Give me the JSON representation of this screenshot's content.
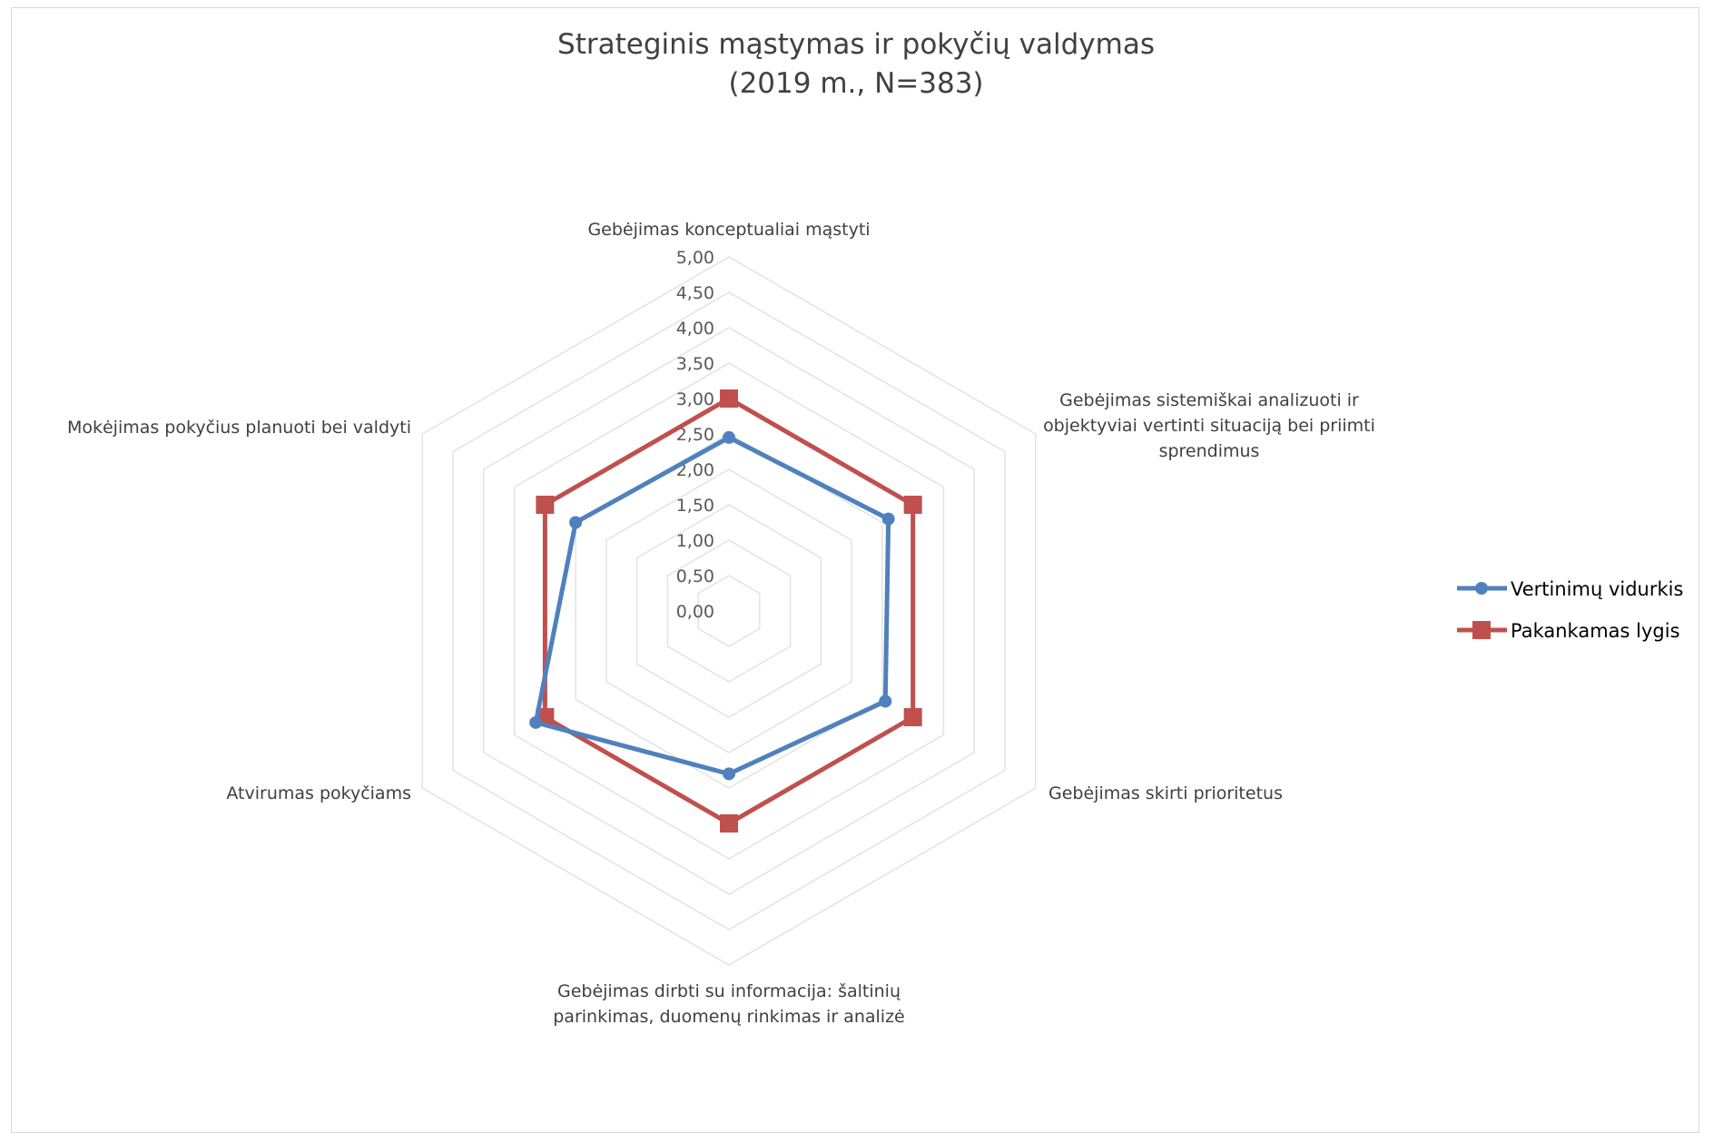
{
  "chart_data": {
    "type": "radar",
    "title": "Strateginis mąstymas ir pokyčių valdymas",
    "subtitle": "(2019 m., N=383)",
    "axes": [
      [
        "Gebėjimas konceptualiai mąstyti"
      ],
      [
        "Gebėjimas sistemiškai analizuoti ir",
        "objektyviai vertinti situaciją bei priimti",
        "sprendimus"
      ],
      [
        "Gebėjimas skirti prioritetus"
      ],
      [
        "Gebėjimas dirbti su informacija: šaltinių",
        "parinkimas, duomenų rinkimas ir analizė"
      ],
      [
        "Atvirumas pokyčiams"
      ],
      [
        "Mokėjimas pokyčius planuoti bei valdyti"
      ]
    ],
    "r_range": [
      0,
      5
    ],
    "ticks": [
      "0,00",
      "0,50",
      "1,00",
      "1,50",
      "2,00",
      "2,50",
      "3,00",
      "3,50",
      "4,00",
      "4,50",
      "5,00"
    ],
    "grid": true,
    "legend_position": "right",
    "series": [
      {
        "name": "Vertinimų vidurkis",
        "color": "#4f81bd",
        "marker": "circle",
        "values": [
          2.45,
          2.6,
          2.55,
          2.3,
          3.15,
          2.5
        ]
      },
      {
        "name": "Pakankamas lygis",
        "color": "#c0504d",
        "marker": "square",
        "values": [
          3.0,
          3.0,
          3.0,
          3.0,
          3.0,
          3.0
        ]
      }
    ]
  }
}
